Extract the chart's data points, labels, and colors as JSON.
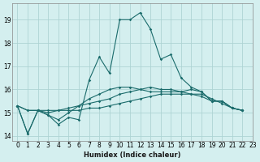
{
  "xlabel": "Humidex (Indice chaleur)",
  "ylabel": "",
  "background_color": "#d4efef",
  "grid_color": "#aed4d4",
  "line_color": "#1a6b6b",
  "xlim": [
    -0.5,
    23
  ],
  "ylim": [
    13.8,
    19.7
  ],
  "yticks": [
    14,
    15,
    16,
    17,
    18,
    19
  ],
  "xticks": [
    0,
    1,
    2,
    3,
    4,
    5,
    6,
    7,
    8,
    9,
    10,
    11,
    12,
    13,
    14,
    15,
    16,
    17,
    18,
    19,
    20,
    21,
    22,
    23
  ],
  "lines": [
    [
      15.3,
      14.1,
      15.1,
      14.9,
      14.5,
      14.8,
      14.7,
      16.4,
      17.4,
      16.7,
      19.0,
      19.0,
      19.3,
      18.6,
      17.3,
      17.5,
      16.5,
      16.1,
      15.9,
      15.5,
      15.5,
      15.2,
      15.1
    ],
    [
      15.3,
      14.1,
      15.1,
      14.9,
      14.7,
      15.0,
      15.3,
      15.6,
      15.8,
      16.0,
      16.1,
      16.1,
      16.0,
      15.9,
      15.9,
      15.9,
      15.9,
      16.0,
      15.9,
      15.5,
      15.5,
      15.2,
      15.1
    ],
    [
      15.3,
      15.1,
      15.1,
      15.0,
      15.1,
      15.2,
      15.3,
      15.4,
      15.5,
      15.6,
      15.8,
      15.9,
      16.0,
      16.1,
      16.0,
      16.0,
      15.9,
      15.8,
      15.7,
      15.5,
      15.5,
      15.2,
      15.1
    ],
    [
      15.3,
      15.1,
      15.1,
      15.1,
      15.1,
      15.1,
      15.1,
      15.2,
      15.2,
      15.3,
      15.4,
      15.5,
      15.6,
      15.7,
      15.8,
      15.8,
      15.8,
      15.8,
      15.8,
      15.6,
      15.4,
      15.2,
      15.1
    ]
  ]
}
